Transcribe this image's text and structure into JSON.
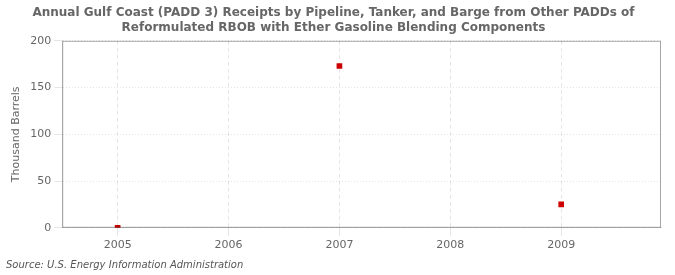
{
  "chart_data": {
    "type": "scatter",
    "title": "Annual Gulf Coast (PADD 3) Receipts by Pipeline, Tanker, and Barge from Other PADDs of\nReformulated RBOB with Ether Gasoline Blending Components",
    "y_label": "Thousand Barrels",
    "source": "Source: U.S. Energy Information Administration",
    "x": [
      2005,
      2007,
      2009
    ],
    "values": [
      0,
      173,
      25
    ],
    "color": "#cc0000",
    "marker": "square",
    "xlim": [
      2004.5,
      2009.9
    ],
    "xticks": [
      2005,
      2006,
      2007,
      2008,
      2009
    ],
    "ylim": [
      0,
      200
    ],
    "yticks": [
      0,
      50,
      100,
      150,
      200
    ],
    "grid": true,
    "legend": false
  }
}
